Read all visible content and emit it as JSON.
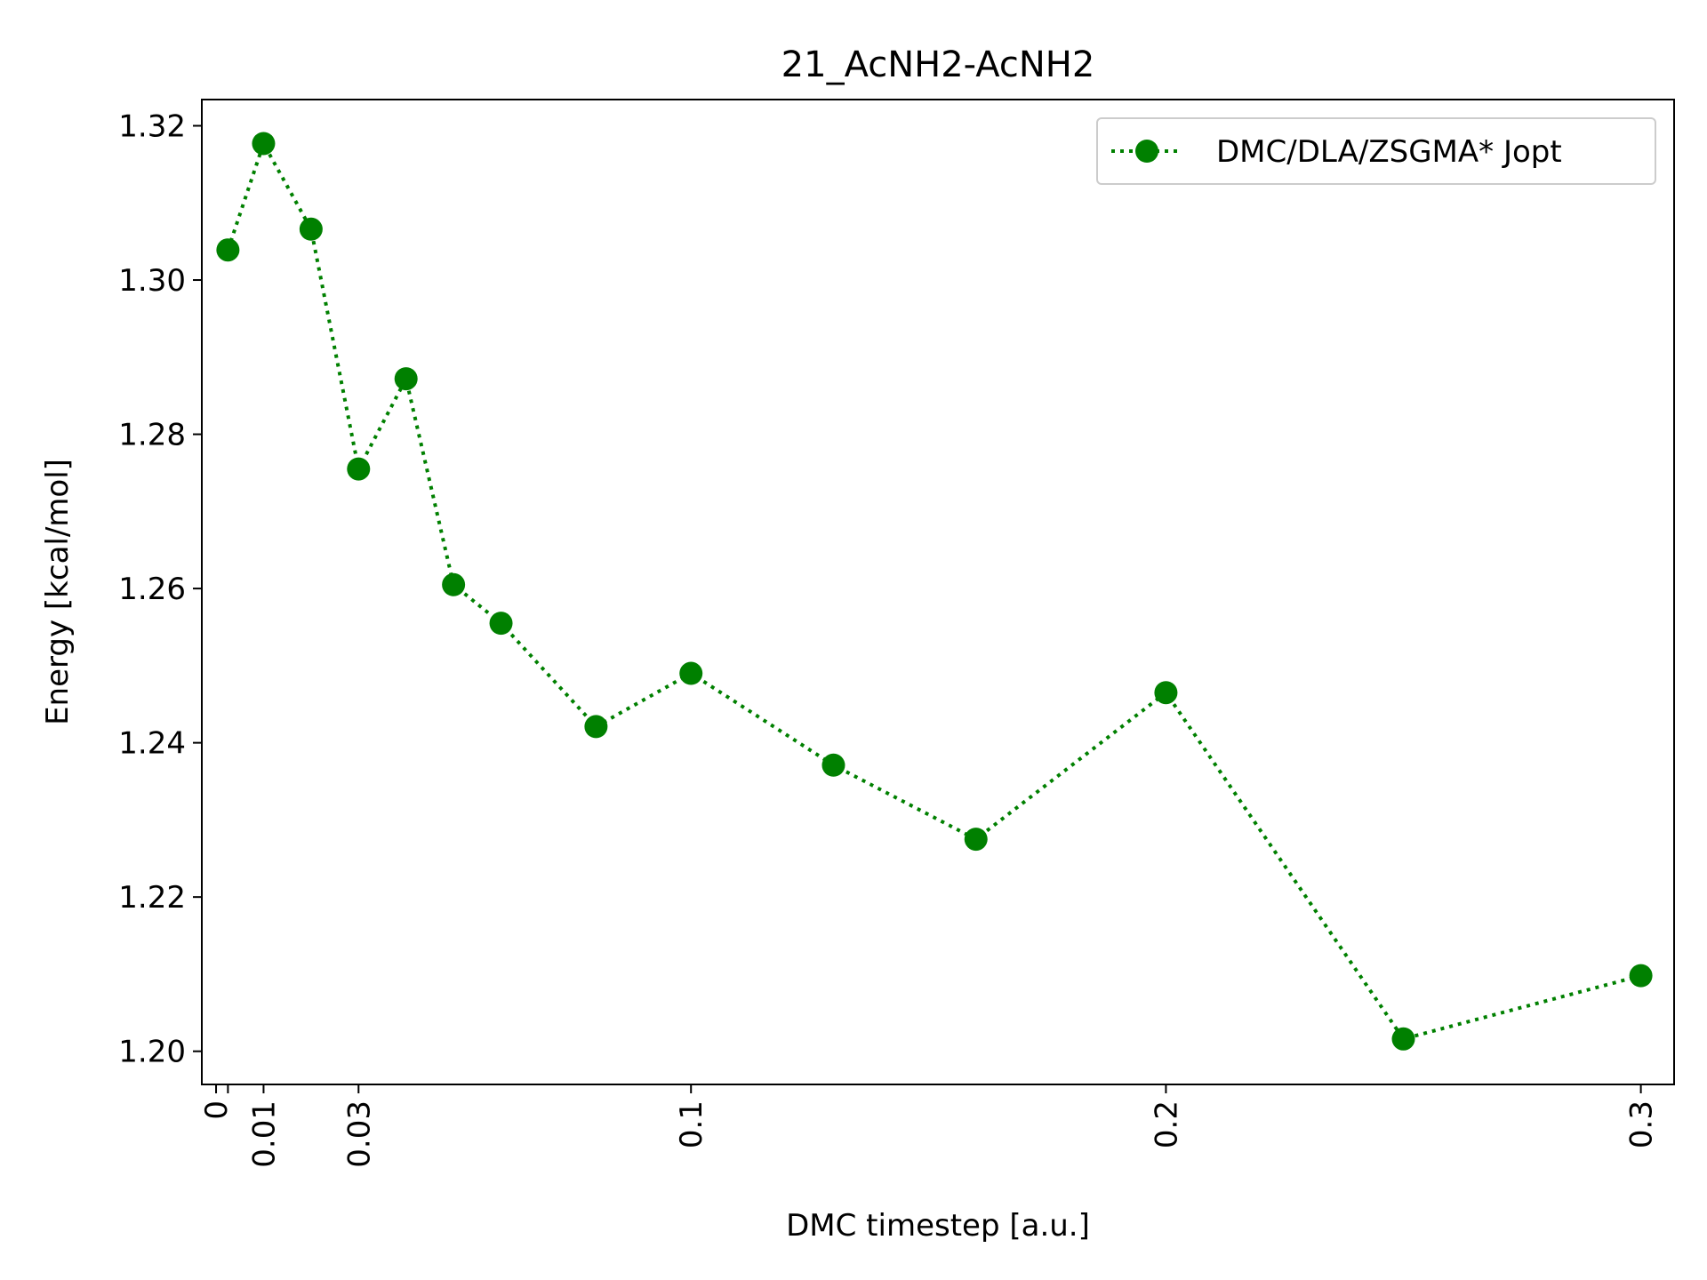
{
  "chart_data": {
    "type": "line",
    "title": "21_AcNH2-AcNH2",
    "xlabel": "DMC timestep [a.u.]",
    "ylabel": "Energy [kcal/mol]",
    "xlim": [
      -0.003,
      0.307
    ],
    "ylim": [
      1.1957,
      1.3234
    ],
    "xticks": [
      0,
      0.0025,
      0.01,
      0.03,
      0.1,
      0.2,
      0.3
    ],
    "xtick_labels": [
      "0",
      "",
      "0.01",
      "0.03",
      "0.1",
      "0.2",
      "0.3"
    ],
    "yticks": [
      1.2,
      1.22,
      1.24,
      1.26,
      1.28,
      1.3,
      1.32
    ],
    "ytick_labels": [
      "1.20",
      "1.22",
      "1.24",
      "1.26",
      "1.28",
      "1.30",
      "1.32"
    ],
    "grid": false,
    "legend_position": "top-right",
    "colors": {
      "series": "#008000",
      "axes": "#000000"
    },
    "series": [
      {
        "name": "DMC/DLA/ZSGMA* Jopt",
        "style": "dotted-line-circle-markers",
        "x": [
          0.0025,
          0.01,
          0.02,
          0.03,
          0.04,
          0.05,
          0.06,
          0.08,
          0.1,
          0.13,
          0.16,
          0.2,
          0.25,
          0.3
        ],
        "y": [
          1.3039,
          1.3177,
          1.3066,
          1.2755,
          1.2872,
          1.2605,
          1.2555,
          1.2421,
          1.249,
          1.2371,
          1.2275,
          1.2465,
          1.2016,
          1.2098
        ]
      }
    ]
  }
}
